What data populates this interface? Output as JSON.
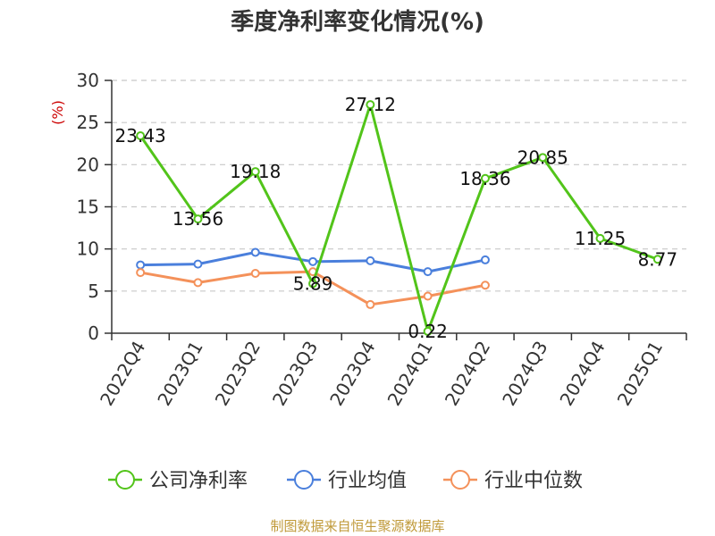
{
  "chart_data": {
    "type": "line",
    "title": "季度净利率变化情况(%)",
    "unit_label": "(%)",
    "categories": [
      "2022Q4",
      "2023Q1",
      "2023Q2",
      "2023Q3",
      "2023Q4",
      "2024Q1",
      "2024Q2",
      "2024Q3",
      "2024Q4",
      "2025Q1"
    ],
    "y_ticks": [
      0,
      5,
      10,
      15,
      20,
      25,
      30
    ],
    "ylim": [
      0,
      30
    ],
    "grid": true,
    "legend_position": "bottom",
    "series": [
      {
        "name": "公司净利率",
        "color": "#52c41a",
        "values": [
          23.43,
          13.56,
          19.18,
          5.89,
          27.12,
          0.22,
          18.36,
          20.85,
          11.25,
          8.77
        ],
        "labels": [
          "23.43",
          "13.56",
          "19.18",
          "5.89",
          "27.12",
          "0.22",
          "18.36",
          "20.85",
          "11.25",
          "8.77"
        ]
      },
      {
        "name": "行业均值",
        "color": "#4a7fdc",
        "values": [
          8.1,
          8.2,
          9.6,
          8.5,
          8.6,
          7.3,
          8.7,
          null,
          null,
          null
        ]
      },
      {
        "name": "行业中位数",
        "color": "#f4915a",
        "values": [
          7.2,
          6.0,
          7.1,
          7.3,
          3.4,
          4.4,
          5.7,
          null,
          null,
          null
        ]
      }
    ]
  },
  "source": "制图数据来自恒生聚源数据库"
}
